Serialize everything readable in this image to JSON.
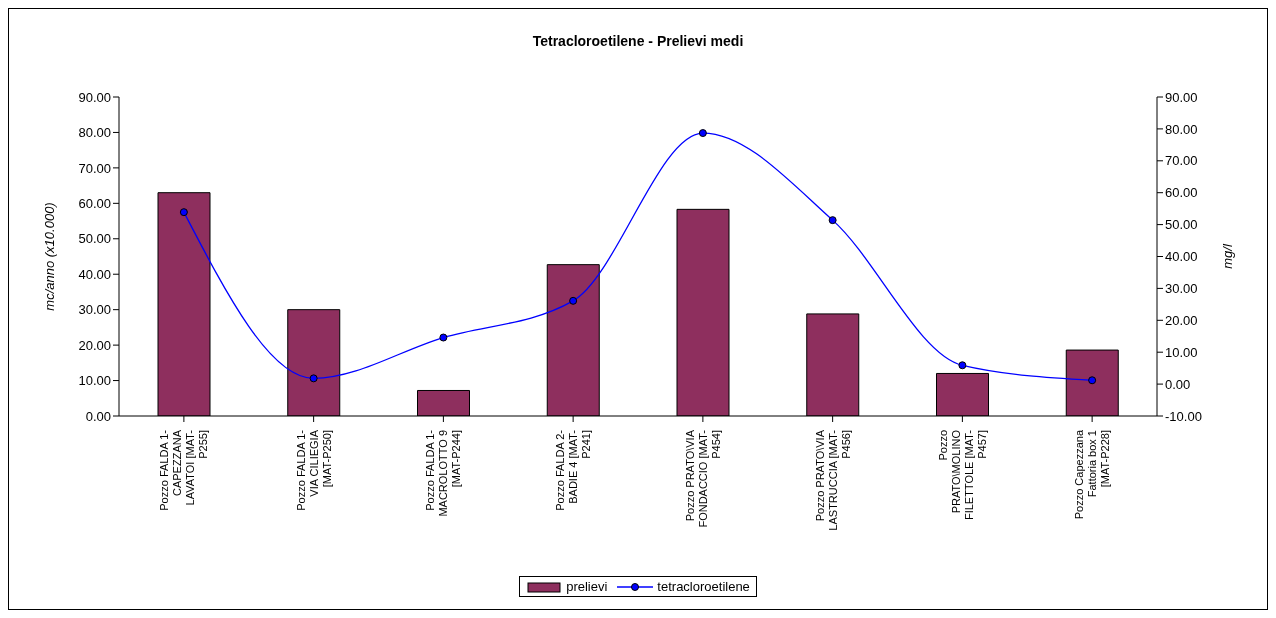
{
  "chart_data": {
    "type": "bar",
    "title": "Tetracloroetilene - Prelievi medi",
    "categories": [
      "Pozzo FALDA 1-CAPEZZANA LAVATOI [MAT-P255]",
      "Pozzo FALDA 1-VIA CILIEGIA [MAT-P250]",
      "Pozzo FALDA 1-MACROLOTTO 9 [MAT-P244]",
      "Pozzo FALDA 2-BADIE 4 [MAT-P241]",
      "Pozzo PRATO\\VIA FONDACCIO [MAT-P454]",
      "Pozzo PRATO\\VIA LASTRUCCIA [MAT-P456]",
      "Pozzo PRATO\\MOLINO FILETTOLE [MAT-P457]",
      "Pozzo Capezzana Fattoria box 1 [MAT-P228]"
    ],
    "series": [
      {
        "name": "prelievi",
        "color": "#8e2f5e",
        "values": [
          63.0,
          30.0,
          7.2,
          42.7,
          58.3,
          28.8,
          12.0,
          18.6
        ]
      },
      {
        "name": "tetracloroetilene",
        "type": "line",
        "axis": "y2",
        "color": "#0000ff",
        "marker": "circle",
        "values": [
          53.9,
          1.8,
          14.6,
          26.1,
          78.7,
          51.4,
          5.9,
          1.2
        ]
      }
    ],
    "ylabel": "mc/anno (x10.000)",
    "y2label": "mg/l",
    "ylim": [
      0,
      90
    ],
    "yticks": [
      {
        "value": 0,
        "label": "0.00"
      },
      {
        "value": 10,
        "label": "10.00"
      },
      {
        "value": 20,
        "label": "20.00"
      },
      {
        "value": 30,
        "label": "30.00"
      },
      {
        "value": 40,
        "label": "40.00"
      },
      {
        "value": 50,
        "label": "50.00"
      },
      {
        "value": 60,
        "label": "60.00"
      },
      {
        "value": 70,
        "label": "70.00"
      },
      {
        "value": 80,
        "label": "80.00"
      },
      {
        "value": 90,
        "label": "90.00"
      }
    ],
    "y2lim": [
      -10,
      90
    ],
    "y2ticks": [
      {
        "value": -10,
        "label": "-10.00"
      },
      {
        "value": 0,
        "label": "0.00"
      },
      {
        "value": 10,
        "label": "10.00"
      },
      {
        "value": 20,
        "label": "20.00"
      },
      {
        "value": 30,
        "label": "30.00"
      },
      {
        "value": 40,
        "label": "40.00"
      },
      {
        "value": 50,
        "label": "50.00"
      },
      {
        "value": 60,
        "label": "60.00"
      },
      {
        "value": 70,
        "label": "70.00"
      },
      {
        "value": 80,
        "label": "80.00"
      },
      {
        "value": 90,
        "label": "90.00"
      }
    ],
    "legend": "bottom"
  }
}
